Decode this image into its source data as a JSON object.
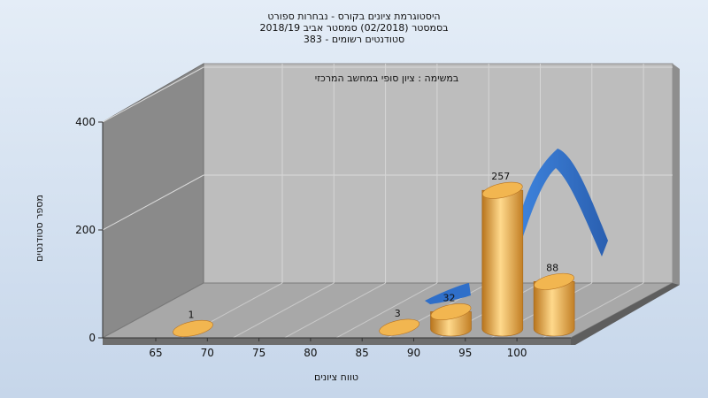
{
  "chart_data": {
    "type": "bar",
    "title_lines": [
      "היסטוגרמת ציונים בקורס - נבחרות ספורט",
      "בסמסטר  (02/2018)  סמסטר אביב 2018/19",
      "383 - סטודנטים רשומים"
    ],
    "annotation": "במשימה : ציון סופי במחשב המרכזי",
    "xlabel": "טווח ציונים",
    "ylabel": "מספר סטודנטים",
    "categories": [
      "65",
      "70",
      "75",
      "80",
      "85",
      "90",
      "95",
      "100"
    ],
    "values": [
      1,
      0,
      0,
      0,
      3,
      32,
      257,
      88
    ],
    "data_labels": [
      "1",
      "",
      "",
      "",
      "3",
      "32",
      "257",
      "88"
    ],
    "ylim": [
      0,
      400
    ],
    "yticks": [
      "0",
      "200",
      "400"
    ],
    "grid": true,
    "bar_color": "#E8A33A",
    "curve_color": "#2F6FC9",
    "background_color": "#DCE7F4"
  }
}
